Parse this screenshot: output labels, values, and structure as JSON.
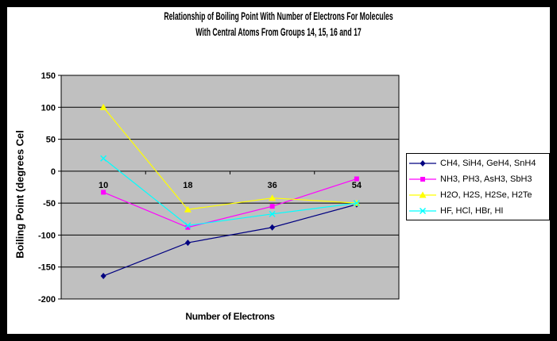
{
  "chart_data": {
    "type": "line",
    "title": "Relationship of Boiling Point With Number of Electrons For Molecules With Central Atoms From Groups 14, 15, 16 and 17",
    "title_lines": [
      "Relationship of Boiling Point With Number of Electrons For Molecules",
      "With Central Atoms From Groups 14, 15, 16 and 17"
    ],
    "xlabel": "Number of Electrons",
    "ylabel": "Boiling Point (degrees Cel",
    "categories": [
      "10",
      "18",
      "36",
      "54"
    ],
    "yticks": [
      150,
      100,
      50,
      0,
      -50,
      -100,
      -150,
      -200
    ],
    "ylim": [
      -200,
      150
    ],
    "grid": true,
    "legend_position": "right",
    "series": [
      {
        "name": "CH4, SiH4, GeH4, SnH4",
        "marker": "diamond",
        "color": "#000080",
        "values": [
          -164,
          -112,
          -88,
          -52
        ]
      },
      {
        "name": "NH3, PH3, AsH3, SbH3",
        "marker": "square",
        "color": "#ff00ff",
        "values": [
          -33,
          -88,
          -55,
          -12
        ]
      },
      {
        "name": "H2O, H2S, H2Se, H2Te",
        "marker": "triangle",
        "color": "#ffff00",
        "values": [
          100,
          -60,
          -42,
          -50
        ]
      },
      {
        "name": "HF, HCl, HBr, HI",
        "marker": "x",
        "color": "#00ffff",
        "values": [
          20,
          -85,
          -67,
          -50
        ]
      }
    ],
    "colors": {
      "frame": "#000000",
      "chart_bg": "#ffffff",
      "plot_bg": "#c0c0c0",
      "grid": "#000000",
      "text": "#000000"
    }
  }
}
